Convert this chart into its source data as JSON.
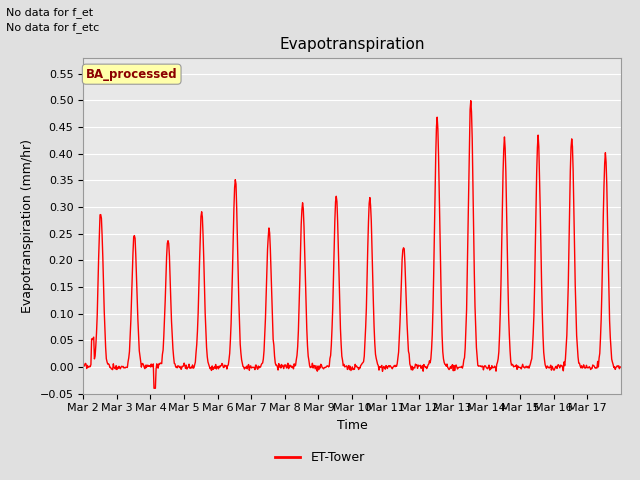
{
  "title": "Evapotranspiration",
  "ylabel": "Evapotranspiration (mm/hr)",
  "xlabel": "Time",
  "ylim": [
    -0.05,
    0.58
  ],
  "yticks": [
    -0.05,
    0.0,
    0.05,
    0.1,
    0.15,
    0.2,
    0.25,
    0.3,
    0.35,
    0.4,
    0.45,
    0.5,
    0.55
  ],
  "line_color": "red",
  "line_width": 1.0,
  "bg_color": "#e0e0e0",
  "plot_bg_color": "#e8e8e8",
  "legend_label": "ET-Tower",
  "legend_box_color": "#ffffaa",
  "legend_box_text": "BA_processed",
  "legend_box_text_color": "#8b0000",
  "note_line1": "No data for f_et",
  "note_line2": "No data for f_etc",
  "xtick_labels": [
    "Mar 2",
    "Mar 3",
    "Mar 4",
    "Mar 5",
    "Mar 6",
    "Mar 7",
    "Mar 8",
    "Mar 9",
    "Mar 10",
    "Mar 11",
    "Mar 12",
    "Mar 13",
    "Mar 14",
    "Mar 15",
    "Mar 16",
    "Mar 17"
  ],
  "num_days": 16,
  "day_peaks": [
    0.29,
    0.25,
    0.24,
    0.29,
    0.35,
    0.26,
    0.31,
    0.32,
    0.32,
    0.23,
    0.47,
    0.5,
    0.43,
    0.43,
    0.43,
    0.4
  ],
  "peak_widths": [
    3.5,
    3.5,
    3.5,
    3.5,
    3.5,
    3.5,
    3.5,
    3.5,
    3.5,
    3.5,
    3.5,
    3.5,
    3.5,
    3.5,
    3.5,
    3.5
  ],
  "title_fontsize": 11,
  "axis_fontsize": 9,
  "tick_fontsize": 8
}
